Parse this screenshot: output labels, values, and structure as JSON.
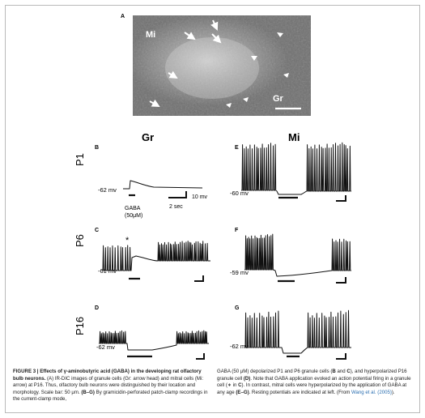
{
  "panel_a": {
    "letter": "A",
    "label_mi": "Mi",
    "label_gr": "Gr"
  },
  "columns": {
    "gr": "Gr",
    "mi": "Mi"
  },
  "ages": {
    "p1": "P1",
    "p6": "P6",
    "p16": "P16"
  },
  "panels": {
    "b": {
      "letter": "B",
      "potential": "-62 mv"
    },
    "c": {
      "letter": "C",
      "potential": "-61 mv",
      "marker": "*"
    },
    "d": {
      "letter": "D",
      "potential": "-62 mv"
    },
    "e": {
      "letter": "E",
      "potential": "-60 mv"
    },
    "f": {
      "letter": "F",
      "potential": "-59 mv"
    },
    "g": {
      "letter": "G",
      "potential": "-62 mv"
    }
  },
  "gaba_label": "GABA",
  "gaba_conc": "(50μM)",
  "scale_mv": "10 mv",
  "scale_time": "2 sec",
  "caption": {
    "fig": "FIGURE 3 | Effects of γ-aminobutyric acid (GABA) in the developing rat olfactory bulb neurons.",
    "left_a": " (A) IR-DIC images of granule cells (Gr: arrow head) and mitral cells (Mi: arrow) at P16. Thus, olfactory bulb neurons were distinguished by their location and morphology. Scale bar: 50 μm. ",
    "left_bg": "(B–G)",
    "left_b": " By gramicidin-perforated patch-clamp recordings in the current-clamp mode,",
    "right_a": "GABA (50 μM) depolarized P1 and P6 granule cells (",
    "right_b": "B",
    "right_c": " and ",
    "right_d": "C",
    "right_e": "), and hyperpolarized P16 granule cell ",
    "right_f": "(D)",
    "right_g": ". Note that GABA application evoked an action potential firing in a granule cell (∗ in ",
    "right_h": "C",
    "right_i": "). In contrast, mitral cells were hyperpolarized by the application of GABA at any age ",
    "right_j": "(E–G)",
    "right_k": ". Resting potentials are indicated at left. (From ",
    "right_ref": "Wang et al. (2005)",
    "right_end": ")."
  }
}
